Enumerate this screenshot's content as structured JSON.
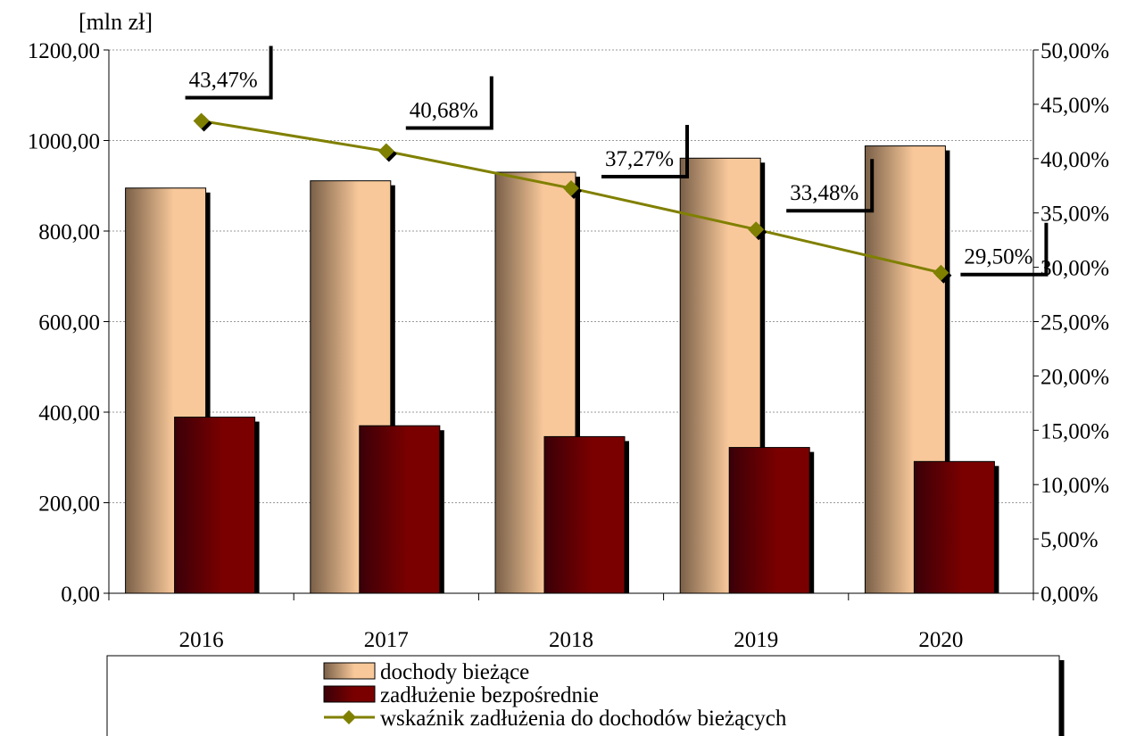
{
  "chart_data": {
    "type": "bar",
    "unit_label": "[mln zł]",
    "categories": [
      "2016",
      "2017",
      "2018",
      "2019",
      "2020"
    ],
    "series": [
      {
        "name": "dochody bieżące",
        "type": "bar",
        "axis": "left",
        "values": [
          895,
          911,
          930,
          961,
          988
        ]
      },
      {
        "name": "zadłużenie bezpośrednie",
        "type": "bar",
        "axis": "left",
        "values": [
          389,
          370,
          346,
          322,
          291
        ]
      },
      {
        "name": "wskaźnik zadłużenia do dochodów bieżących",
        "type": "line",
        "axis": "right",
        "values": [
          43.47,
          40.68,
          37.27,
          33.48,
          29.5
        ],
        "labels": [
          "43,47%",
          "40,68%",
          "37,27%",
          "33,48%",
          "29,50%"
        ]
      }
    ],
    "y_left": {
      "ylim": [
        0,
        1200
      ],
      "ticks": [
        "0,00",
        "200,00",
        "400,00",
        "600,00",
        "800,00",
        "1000,00",
        "1200,00"
      ]
    },
    "y_right": {
      "ylim": [
        0,
        50
      ],
      "ticks": [
        "0,00%",
        "5,00%",
        "10,00%",
        "15,00%",
        "20,00%",
        "25,00%",
        "30,00%",
        "35,00%",
        "40,00%",
        "45,00%",
        "50,00%"
      ]
    },
    "grid": true,
    "legend_position": "bottom",
    "colors": {
      "income": "#f8c89a",
      "income_dark": "#7a6048",
      "debt": "#7a0000",
      "debt_dark": "#3a0008",
      "line": "#808000"
    }
  }
}
